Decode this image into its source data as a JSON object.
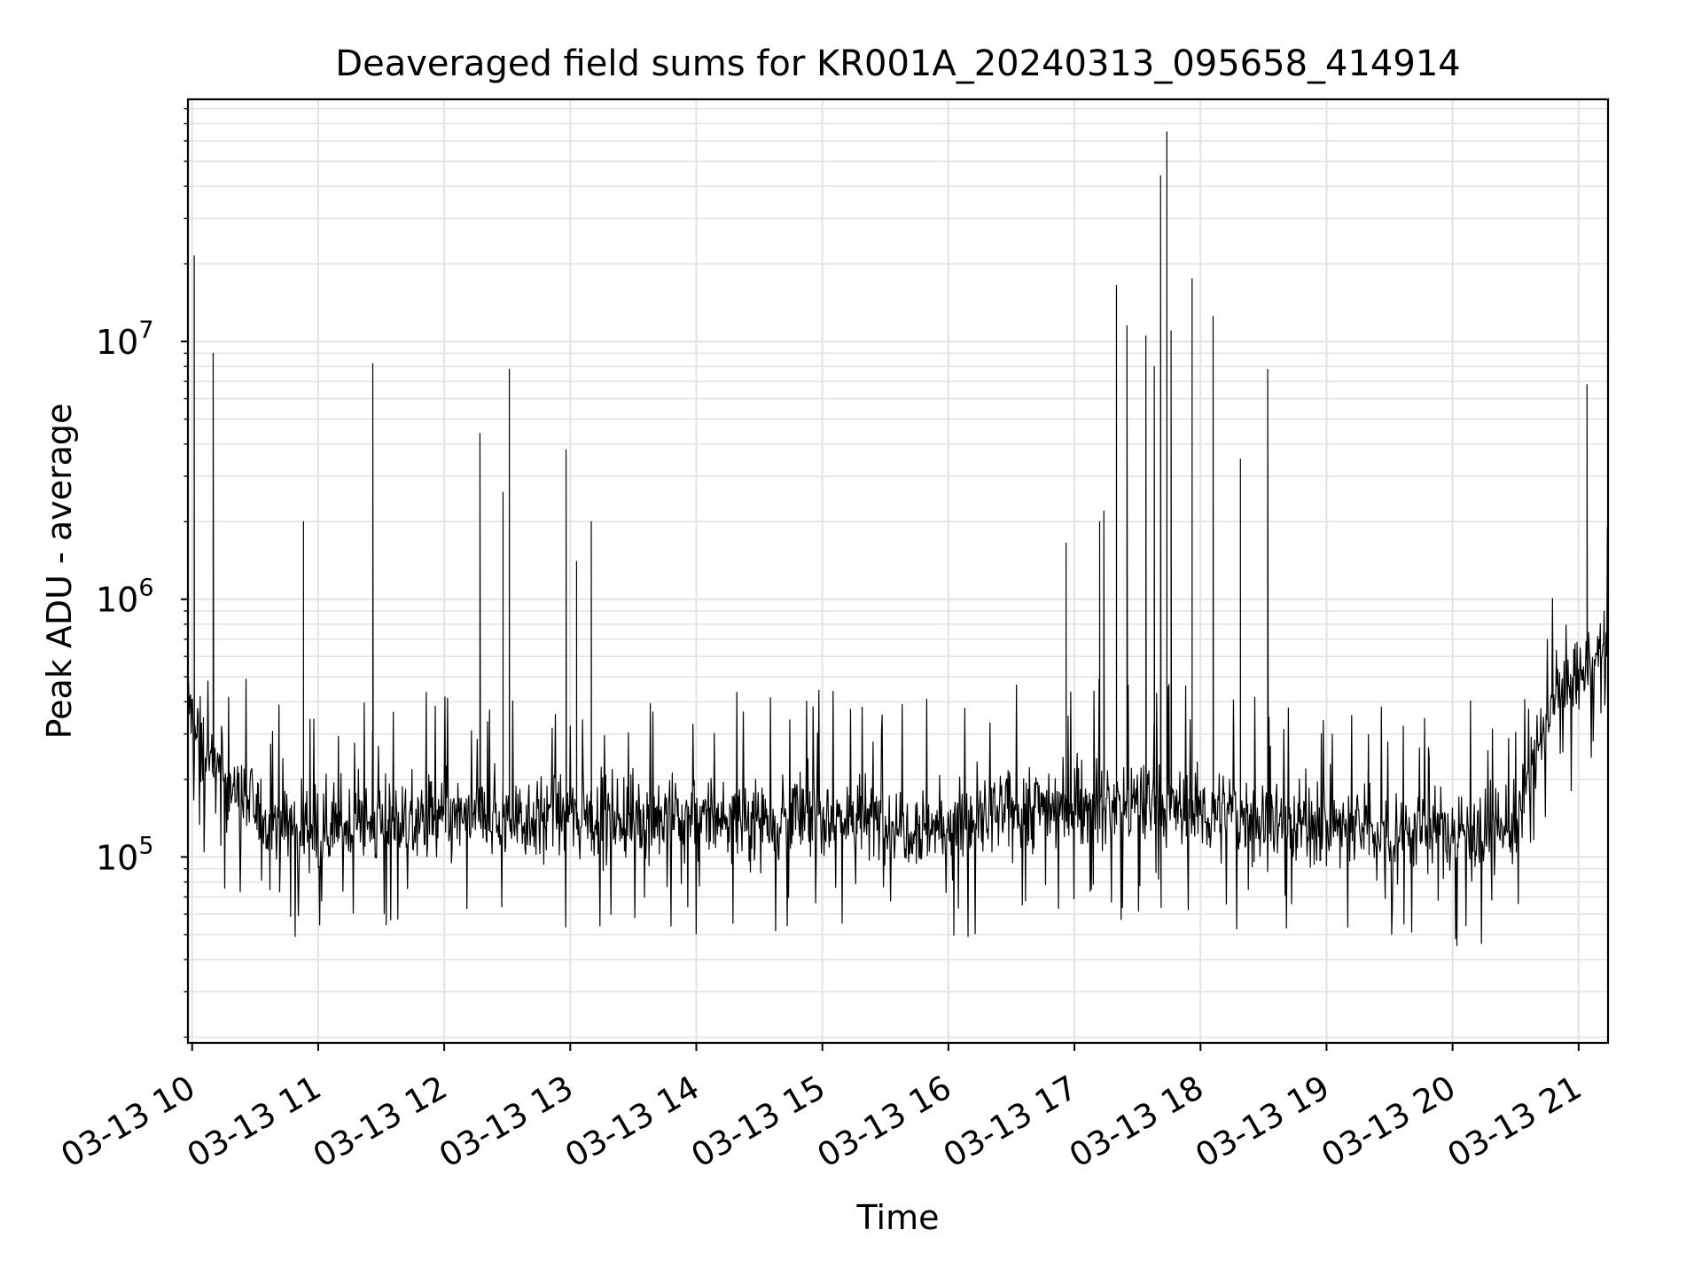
{
  "chart_data": {
    "type": "line",
    "title": "Deaveraged field sums for KR001A_20240313_095658_414914",
    "xlabel": "Time",
    "ylabel": "Peak ADU - average",
    "x_ticks": [
      "03-13 10",
      "03-13 11",
      "03-13 12",
      "03-13 13",
      "03-13 14",
      "03-13 15",
      "03-13 16",
      "03-13 17",
      "03-13 18",
      "03-13 19",
      "03-13 20",
      "03-13 21"
    ],
    "y_ticks": [
      {
        "base": "10",
        "exp": "5",
        "value": 100000
      },
      {
        "base": "10",
        "exp": "6",
        "value": 1000000
      },
      {
        "base": "10",
        "exp": "7",
        "value": 10000000
      }
    ],
    "yscale": "log",
    "ylim": [
      19000,
      87000000
    ],
    "xlim": [
      "2024-03-13 09:58",
      "2024-03-13 21:14"
    ],
    "grid": true,
    "line_color": "#000000",
    "baseline_profile": [
      {
        "t": "2024-03-13 09:58",
        "v": 400000
      },
      {
        "t": "2024-03-13 10:05",
        "v": 250000
      },
      {
        "t": "2024-03-13 10:20",
        "v": 180000
      },
      {
        "t": "2024-03-13 10:35",
        "v": 140000
      },
      {
        "t": "2024-03-13 11:00",
        "v": 130000
      },
      {
        "t": "2024-03-13 12:00",
        "v": 140000
      },
      {
        "t": "2024-03-13 13:00",
        "v": 145000
      },
      {
        "t": "2024-03-13 14:00",
        "v": 140000
      },
      {
        "t": "2024-03-13 15:00",
        "v": 145000
      },
      {
        "t": "2024-03-13 16:00",
        "v": 130000
      },
      {
        "t": "2024-03-13 16:45",
        "v": 160000
      },
      {
        "t": "2024-03-13 17:30",
        "v": 160000
      },
      {
        "t": "2024-03-13 18:30",
        "v": 140000
      },
      {
        "t": "2024-03-13 19:30",
        "v": 125000
      },
      {
        "t": "2024-03-13 20:30",
        "v": 130000
      },
      {
        "t": "2024-03-13 20:40",
        "v": 250000
      },
      {
        "t": "2024-03-13 20:50",
        "v": 450000
      },
      {
        "t": "2024-03-13 21:14",
        "v": 600000
      }
    ],
    "spikes": [
      {
        "t": "2024-03-13 10:01",
        "v": 21500000
      },
      {
        "t": "2024-03-13 10:10",
        "v": 9000000
      },
      {
        "t": "2024-03-13 10:53",
        "v": 2000000
      },
      {
        "t": "2024-03-13 11:26",
        "v": 8200000
      },
      {
        "t": "2024-03-13 12:17",
        "v": 4400000
      },
      {
        "t": "2024-03-13 12:28",
        "v": 2600000
      },
      {
        "t": "2024-03-13 12:31",
        "v": 7800000
      },
      {
        "t": "2024-03-13 12:58",
        "v": 3800000
      },
      {
        "t": "2024-03-13 13:03",
        "v": 1400000
      },
      {
        "t": "2024-03-13 13:10",
        "v": 2000000
      },
      {
        "t": "2024-03-13 13:10",
        "v": 950000
      },
      {
        "t": "2024-03-13 16:56",
        "v": 1650000
      },
      {
        "t": "2024-03-13 17:12",
        "v": 2000000
      },
      {
        "t": "2024-03-13 17:14",
        "v": 2200000
      },
      {
        "t": "2024-03-13 17:20",
        "v": 16500000
      },
      {
        "t": "2024-03-13 17:25",
        "v": 11500000
      },
      {
        "t": "2024-03-13 17:34",
        "v": 10500000
      },
      {
        "t": "2024-03-13 17:38",
        "v": 8000000
      },
      {
        "t": "2024-03-13 17:41",
        "v": 44000000
      },
      {
        "t": "2024-03-13 17:44",
        "v": 65000000
      },
      {
        "t": "2024-03-13 17:46",
        "v": 11000000
      },
      {
        "t": "2024-03-13 17:56",
        "v": 17500000
      },
      {
        "t": "2024-03-13 18:06",
        "v": 12500000
      },
      {
        "t": "2024-03-13 18:19",
        "v": 3500000
      },
      {
        "t": "2024-03-13 18:32",
        "v": 7800000
      },
      {
        "t": "2024-03-13 21:04",
        "v": 6800000
      }
    ]
  }
}
